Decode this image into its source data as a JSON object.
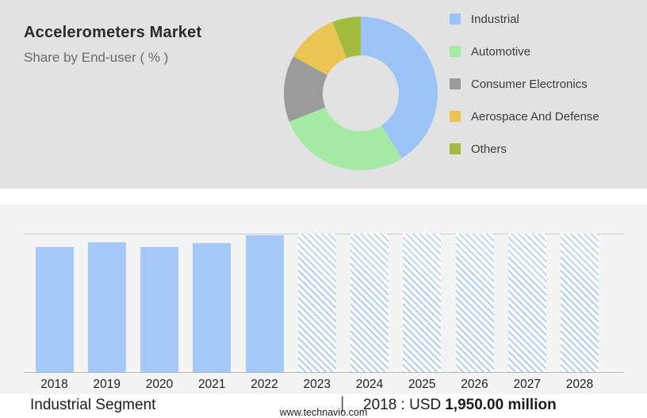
{
  "header": {
    "title": "Accelerometers Market",
    "subtitle": "Share by End-user ( % )"
  },
  "chart_data": [
    {
      "type": "pie",
      "title": "Accelerometers Market Share by End-user (%)",
      "labels": [
        "Industrial",
        "Automotive",
        "Consumer Electronics",
        "Aerospace And Defense",
        "Others"
      ],
      "values": [
        41,
        28,
        14,
        11,
        6
      ],
      "colors": [
        "#9CC3F5",
        "#A6E9A4",
        "#9B9B9B",
        "#EAC452",
        "#A2BC40"
      ],
      "hole_ratio": 0.5,
      "start_angle_deg": 0,
      "direction": "clockwise",
      "legend_position": "right"
    },
    {
      "type": "bar",
      "categories": [
        "2018",
        "2019",
        "2020",
        "2021",
        "2022",
        "2023",
        "2024",
        "2025",
        "2026",
        "2027",
        "2028"
      ],
      "values_relative": [
        0.9,
        0.935,
        0.905,
        0.93,
        0.99,
        1,
        1,
        1,
        1,
        1,
        1
      ],
      "actual_years": [
        "2018",
        "2019",
        "2020",
        "2021",
        "2022"
      ],
      "forecast_years": [
        "2023",
        "2024",
        "2025",
        "2026",
        "2027",
        "2028"
      ],
      "known_values_usd_million": {
        "2018": "1,950.00"
      },
      "unit": "USD million",
      "bar_color": "#A6C8F8",
      "forecast_style": "hatched",
      "grid": false,
      "xlabel": "",
      "ylabel": ""
    }
  ],
  "info_row": {
    "segment_label": "Industrial Segment",
    "separator": "|",
    "value_prefix": "2018 : USD",
    "value_amount": "1,950.00 million"
  },
  "footer": {
    "website": "www.technavio.com"
  },
  "palette": {
    "top_panel_bg": "#E2E2E2",
    "bottom_panel_bg": "#F4F4F4",
    "rule_line": "#CCCCCC",
    "axis_line": "#B5B5B5"
  }
}
